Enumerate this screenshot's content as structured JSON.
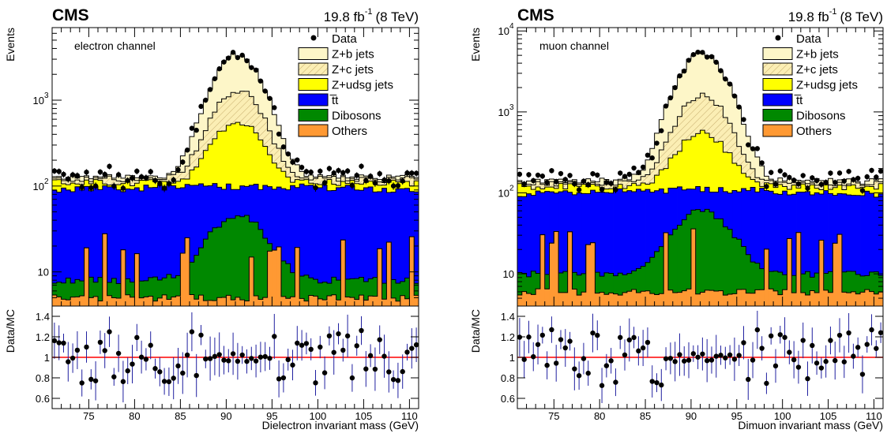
{
  "colors": {
    "data": "#000000",
    "zb": "#fdf6c8",
    "zc": "#fbeeb4",
    "zudsg": "#ffff00",
    "ttbar": "#0000ff",
    "dibosons": "#008800",
    "others": "#ff9933",
    "ratio_line": "#ff0000",
    "error_bar": "#2020a0"
  },
  "charts": [
    {
      "id": "electron",
      "cms_label": "CMS",
      "lumi_label": "19.8 fb",
      "lumi_sup": "-1",
      "lumi_energy": "(8 TeV)",
      "channel_label": "electron channel",
      "y_title": "Events",
      "ratio_y_title": "Data/MC",
      "x_title": "Dielectron invariant mass (GeV)",
      "legend": [
        "Data",
        "Z+b jets",
        "Z+c jets",
        "Z+udsg jets",
        "t̅t",
        "Dibosons",
        "Others"
      ],
      "y_ticks": [
        "10",
        "10",
        "10"
      ],
      "y_tick_sup": [
        "",
        "2",
        "3"
      ],
      "x_ticks": [
        "75",
        "80",
        "85",
        "90",
        "95",
        "100",
        "105",
        "110"
      ],
      "ratio_ticks": [
        "0.6",
        "0.8",
        "1",
        "1.2",
        "1.4"
      ]
    },
    {
      "id": "muon",
      "cms_label": "CMS",
      "lumi_label": "19.8 fb",
      "lumi_sup": "-1",
      "lumi_energy": "(8 TeV)",
      "channel_label": "muon channel",
      "y_title": "Events",
      "ratio_y_title": "Data/MC",
      "x_title": "Dimuon invariant mass (GeV)",
      "legend": [
        "Data",
        "Z+b jets",
        "Z+c jets",
        "Z+udsg jets",
        "t̅t",
        "Dibosons",
        "Others"
      ],
      "y_ticks": [
        "10",
        "10",
        "10",
        "10"
      ],
      "y_tick_sup": [
        "",
        "2",
        "3",
        "4"
      ],
      "x_ticks": [
        "75",
        "80",
        "85",
        "90",
        "95",
        "100",
        "105",
        "110"
      ],
      "ratio_ticks": [
        "0.6",
        "0.8",
        "1",
        "1.2",
        "1.4"
      ]
    }
  ],
  "chart_data": [
    {
      "type": "bar",
      "title": "electron channel",
      "xlabel": "Dielectron invariant mass (GeV)",
      "ylabel": "Events",
      "x_range": [
        71,
        111
      ],
      "y_scale": "log",
      "y_range": [
        4,
        7000
      ],
      "ratio_range": [
        0.5,
        1.5
      ],
      "bin_width": 0.5,
      "series": [
        {
          "name": "Others",
          "peak": 5,
          "base": 5
        },
        {
          "name": "Dibosons",
          "peak": 45,
          "base": 8
        },
        {
          "name": "t̅t",
          "peak": 100,
          "base": 90
        },
        {
          "name": "Z+udsg jets",
          "peak": 560,
          "base": 110
        },
        {
          "name": "Z+c jets",
          "peak": 1300,
          "base": 120
        },
        {
          "name": "Z+b jets",
          "peak": 3300,
          "base": 125
        },
        {
          "name": "Data",
          "peak": 3350,
          "base": 110
        }
      ],
      "peak_position": 91.2,
      "grid": false,
      "legend_position": "top-right"
    },
    {
      "type": "bar",
      "title": "muon channel",
      "xlabel": "Dimuon invariant mass (GeV)",
      "ylabel": "Events",
      "x_range": [
        71,
        111
      ],
      "y_scale": "log",
      "y_range": [
        4,
        11000
      ],
      "ratio_range": [
        0.5,
        1.5
      ],
      "bin_width": 0.5,
      "series": [
        {
          "name": "Others",
          "peak": 6,
          "base": 6
        },
        {
          "name": "Dibosons",
          "peak": 60,
          "base": 10
        },
        {
          "name": "t̅t",
          "peak": 110,
          "base": 95
        },
        {
          "name": "Z+udsg jets",
          "peak": 560,
          "base": 120
        },
        {
          "name": "Z+c jets",
          "peak": 1600,
          "base": 130
        },
        {
          "name": "Z+b jets",
          "peak": 5200,
          "base": 140
        },
        {
          "name": "Data",
          "peak": 5300,
          "base": 120
        }
      ],
      "peak_position": 91.2,
      "grid": false,
      "legend_position": "top-right"
    }
  ]
}
